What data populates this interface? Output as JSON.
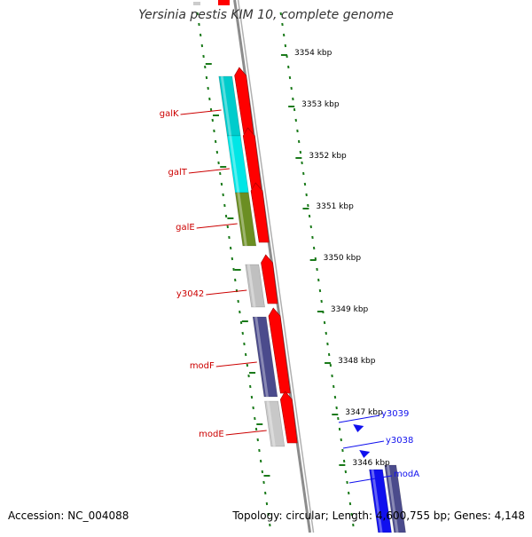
{
  "title": "Yersinia pestis KIM 10, complete genome",
  "accession": "Accession: NC_004088",
  "topology": "Topology: circular; Length: 4,600,755 bp; Genes: 4,148",
  "colors": {
    "background": "#ffffff",
    "backbone": "#8c8c8c",
    "tick": "#1a7a1a",
    "reverse_label": "#cc0000",
    "forward_label": "#0000cc",
    "forward_arrow": "#ff0000",
    "forward_strand_gene": "#1010ee"
  },
  "ruler": {
    "unit": "kbp",
    "labels": [
      "3354 kbp",
      "3353 kbp",
      "3352 kbp",
      "3351 kbp",
      "3350 kbp",
      "3349 kbp",
      "3348 kbp",
      "3347 kbp",
      "3346 kbp"
    ]
  },
  "reverse_genes": [
    {
      "name": "galK",
      "color": "#00cccc"
    },
    {
      "name": "galT",
      "color": "#00e6e6"
    },
    {
      "name": "galE",
      "color": "#6b8e23"
    },
    {
      "name": "y3042",
      "color": "#c0c0c0"
    },
    {
      "name": "modF",
      "color": "#4b4b8c"
    },
    {
      "name": "modE",
      "color": "#c8c8c8"
    }
  ],
  "forward_genes": [
    {
      "name": "y3039"
    },
    {
      "name": "y3038"
    },
    {
      "name": "modA"
    }
  ]
}
